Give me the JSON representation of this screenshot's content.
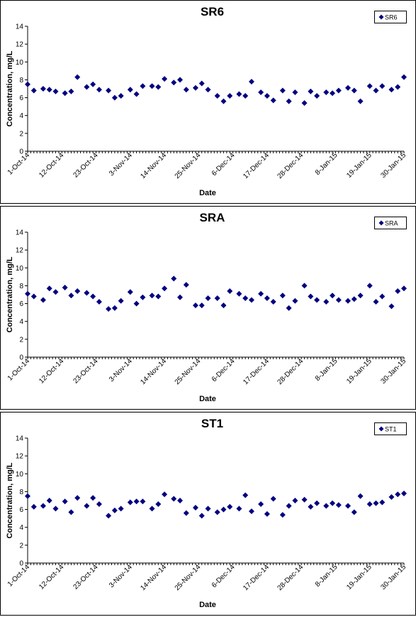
{
  "chart_data": [
    {
      "type": "scatter",
      "title": "SR6",
      "xlabel": "Date",
      "ylabel": "Concentration, mg/L",
      "ylim": [
        0,
        14
      ],
      "yticks": [
        0,
        2,
        4,
        6,
        8,
        10,
        12,
        14
      ],
      "xlim": [
        "2014-10-01",
        "2015-01-30"
      ],
      "xtick_labels": [
        "1-Oct-14",
        "12-Oct-14",
        "23-Oct-14",
        "3-Nov-14",
        "14-Nov-14",
        "25-Nov-14",
        "6-Dec-14",
        "17-Dec-14",
        "28-Dec-14",
        "8-Jan-15",
        "19-Jan-15",
        "30-Jan-15"
      ],
      "legend_position": "top-right",
      "color": "#000080",
      "series": [
        {
          "name": "SR6",
          "x": [
            "2014-10-01",
            "2014-10-03",
            "2014-10-06",
            "2014-10-08",
            "2014-10-10",
            "2014-10-13",
            "2014-10-15",
            "2014-10-17",
            "2014-10-20",
            "2014-10-22",
            "2014-10-24",
            "2014-10-27",
            "2014-10-29",
            "2014-10-31",
            "2014-11-03",
            "2014-11-05",
            "2014-11-07",
            "2014-11-10",
            "2014-11-12",
            "2014-11-14",
            "2014-11-17",
            "2014-11-19",
            "2014-11-21",
            "2014-11-24",
            "2014-11-26",
            "2014-11-28",
            "2014-12-01",
            "2014-12-03",
            "2014-12-05",
            "2014-12-08",
            "2014-12-10",
            "2014-12-12",
            "2014-12-15",
            "2014-12-17",
            "2014-12-19",
            "2014-12-22",
            "2014-12-24",
            "2014-12-26",
            "2014-12-29",
            "2014-12-31",
            "2015-01-02",
            "2015-01-05",
            "2015-01-07",
            "2015-01-09",
            "2015-01-12",
            "2015-01-14",
            "2015-01-16",
            "2015-01-19",
            "2015-01-21",
            "2015-01-23",
            "2015-01-26",
            "2015-01-28",
            "2015-01-30"
          ],
          "values": [
            7.5,
            6.8,
            7.0,
            6.9,
            6.7,
            6.5,
            6.7,
            8.3,
            7.2,
            7.5,
            6.9,
            6.8,
            6.0,
            6.2,
            6.9,
            6.4,
            7.3,
            7.3,
            7.2,
            8.1,
            7.7,
            8.0,
            6.9,
            7.1,
            7.6,
            6.9,
            6.2,
            5.6,
            6.2,
            6.4,
            6.2,
            7.8,
            6.6,
            6.2,
            5.7,
            6.8,
            5.6,
            6.6,
            5.4,
            6.7,
            6.2,
            6.6,
            6.5,
            6.8,
            7.1,
            6.8,
            5.6,
            7.3,
            6.8,
            7.3,
            6.9,
            7.2,
            8.3
          ]
        }
      ]
    },
    {
      "type": "scatter",
      "title": "SRA",
      "xlabel": "Date",
      "ylabel": "Concentration, mg/L",
      "ylim": [
        0,
        14
      ],
      "yticks": [
        0,
        2,
        4,
        6,
        8,
        10,
        12,
        14
      ],
      "xlim": [
        "2014-10-01",
        "2015-01-30"
      ],
      "xtick_labels": [
        "1-Oct-14",
        "12-Oct-14",
        "23-Oct-14",
        "3-Nov-14",
        "14-Nov-14",
        "25-Nov-14",
        "6-Dec-14",
        "17-Dec-14",
        "28-Dec-14",
        "8-Jan-15",
        "19-Jan-15",
        "30-Jan-15"
      ],
      "legend_position": "top-right",
      "color": "#000080",
      "series": [
        {
          "name": "SRA",
          "x": [
            "2014-10-01",
            "2014-10-03",
            "2014-10-06",
            "2014-10-08",
            "2014-10-10",
            "2014-10-13",
            "2014-10-15",
            "2014-10-17",
            "2014-10-20",
            "2014-10-22",
            "2014-10-24",
            "2014-10-27",
            "2014-10-29",
            "2014-10-31",
            "2014-11-03",
            "2014-11-05",
            "2014-11-07",
            "2014-11-10",
            "2014-11-12",
            "2014-11-14",
            "2014-11-17",
            "2014-11-19",
            "2014-11-21",
            "2014-11-24",
            "2014-11-26",
            "2014-11-28",
            "2014-12-01",
            "2014-12-03",
            "2014-12-05",
            "2014-12-08",
            "2014-12-10",
            "2014-12-12",
            "2014-12-15",
            "2014-12-17",
            "2014-12-19",
            "2014-12-22",
            "2014-12-24",
            "2014-12-26",
            "2014-12-29",
            "2014-12-31",
            "2015-01-02",
            "2015-01-05",
            "2015-01-07",
            "2015-01-09",
            "2015-01-12",
            "2015-01-14",
            "2015-01-16",
            "2015-01-19",
            "2015-01-21",
            "2015-01-23",
            "2015-01-26",
            "2015-01-28",
            "2015-01-30"
          ],
          "values": [
            7.1,
            6.8,
            6.4,
            7.7,
            7.3,
            7.8,
            6.9,
            7.4,
            7.2,
            6.8,
            6.2,
            5.4,
            5.5,
            6.3,
            7.3,
            6.0,
            6.7,
            6.9,
            6.8,
            7.7,
            8.8,
            6.7,
            8.1,
            5.8,
            5.8,
            6.6,
            6.6,
            5.8,
            7.4,
            7.1,
            6.6,
            6.4,
            7.1,
            6.6,
            6.2,
            6.9,
            5.5,
            6.3,
            8.0,
            6.8,
            6.4,
            6.2,
            6.9,
            6.4,
            6.3,
            6.5,
            6.9,
            8.0,
            6.2,
            6.8,
            5.7,
            7.4,
            7.7
          ]
        }
      ]
    },
    {
      "type": "scatter",
      "title": "ST1",
      "xlabel": "Date",
      "ylabel": "Concentration, mg/L",
      "ylim": [
        0,
        14
      ],
      "yticks": [
        0,
        2,
        4,
        6,
        8,
        10,
        12,
        14
      ],
      "xlim": [
        "2014-10-01",
        "2015-01-30"
      ],
      "xtick_labels": [
        "1-Oct-14",
        "12-Oct-14",
        "23-Oct-14",
        "3-Nov-14",
        "14-Nov-14",
        "25-Nov-14",
        "6-Dec-14",
        "17-Dec-14",
        "28-Dec-14",
        "8-Jan-15",
        "19-Jan-15",
        "30-Jan-15"
      ],
      "legend_position": "top-right",
      "color": "#000080",
      "series": [
        {
          "name": "ST1",
          "x": [
            "2014-10-01",
            "2014-10-03",
            "2014-10-06",
            "2014-10-08",
            "2014-10-10",
            "2014-10-13",
            "2014-10-15",
            "2014-10-17",
            "2014-10-20",
            "2014-10-22",
            "2014-10-24",
            "2014-10-27",
            "2014-10-29",
            "2014-10-31",
            "2014-11-03",
            "2014-11-05",
            "2014-11-07",
            "2014-11-10",
            "2014-11-12",
            "2014-11-14",
            "2014-11-17",
            "2014-11-19",
            "2014-11-21",
            "2014-11-24",
            "2014-11-26",
            "2014-11-28",
            "2014-12-01",
            "2014-12-03",
            "2014-12-05",
            "2014-12-08",
            "2014-12-10",
            "2014-12-12",
            "2014-12-15",
            "2014-12-17",
            "2014-12-19",
            "2014-12-22",
            "2014-12-24",
            "2014-12-26",
            "2014-12-29",
            "2014-12-31",
            "2015-01-02",
            "2015-01-05",
            "2015-01-07",
            "2015-01-09",
            "2015-01-12",
            "2015-01-14",
            "2015-01-16",
            "2015-01-19",
            "2015-01-21",
            "2015-01-23",
            "2015-01-26",
            "2015-01-28",
            "2015-01-30"
          ],
          "values": [
            7.5,
            6.3,
            6.4,
            7.0,
            6.1,
            6.9,
            5.7,
            7.3,
            6.4,
            7.3,
            6.6,
            5.3,
            5.9,
            6.1,
            6.8,
            6.9,
            6.9,
            6.1,
            6.6,
            7.7,
            7.2,
            7.0,
            5.6,
            6.2,
            5.3,
            6.1,
            5.7,
            6.0,
            6.3,
            6.1,
            7.6,
            5.8,
            6.6,
            5.5,
            7.2,
            5.4,
            6.4,
            7.0,
            7.1,
            6.3,
            6.7,
            6.4,
            6.7,
            6.5,
            6.4,
            5.7,
            7.5,
            6.6,
            6.7,
            6.8,
            7.4,
            7.7,
            7.8
          ]
        }
      ]
    }
  ]
}
